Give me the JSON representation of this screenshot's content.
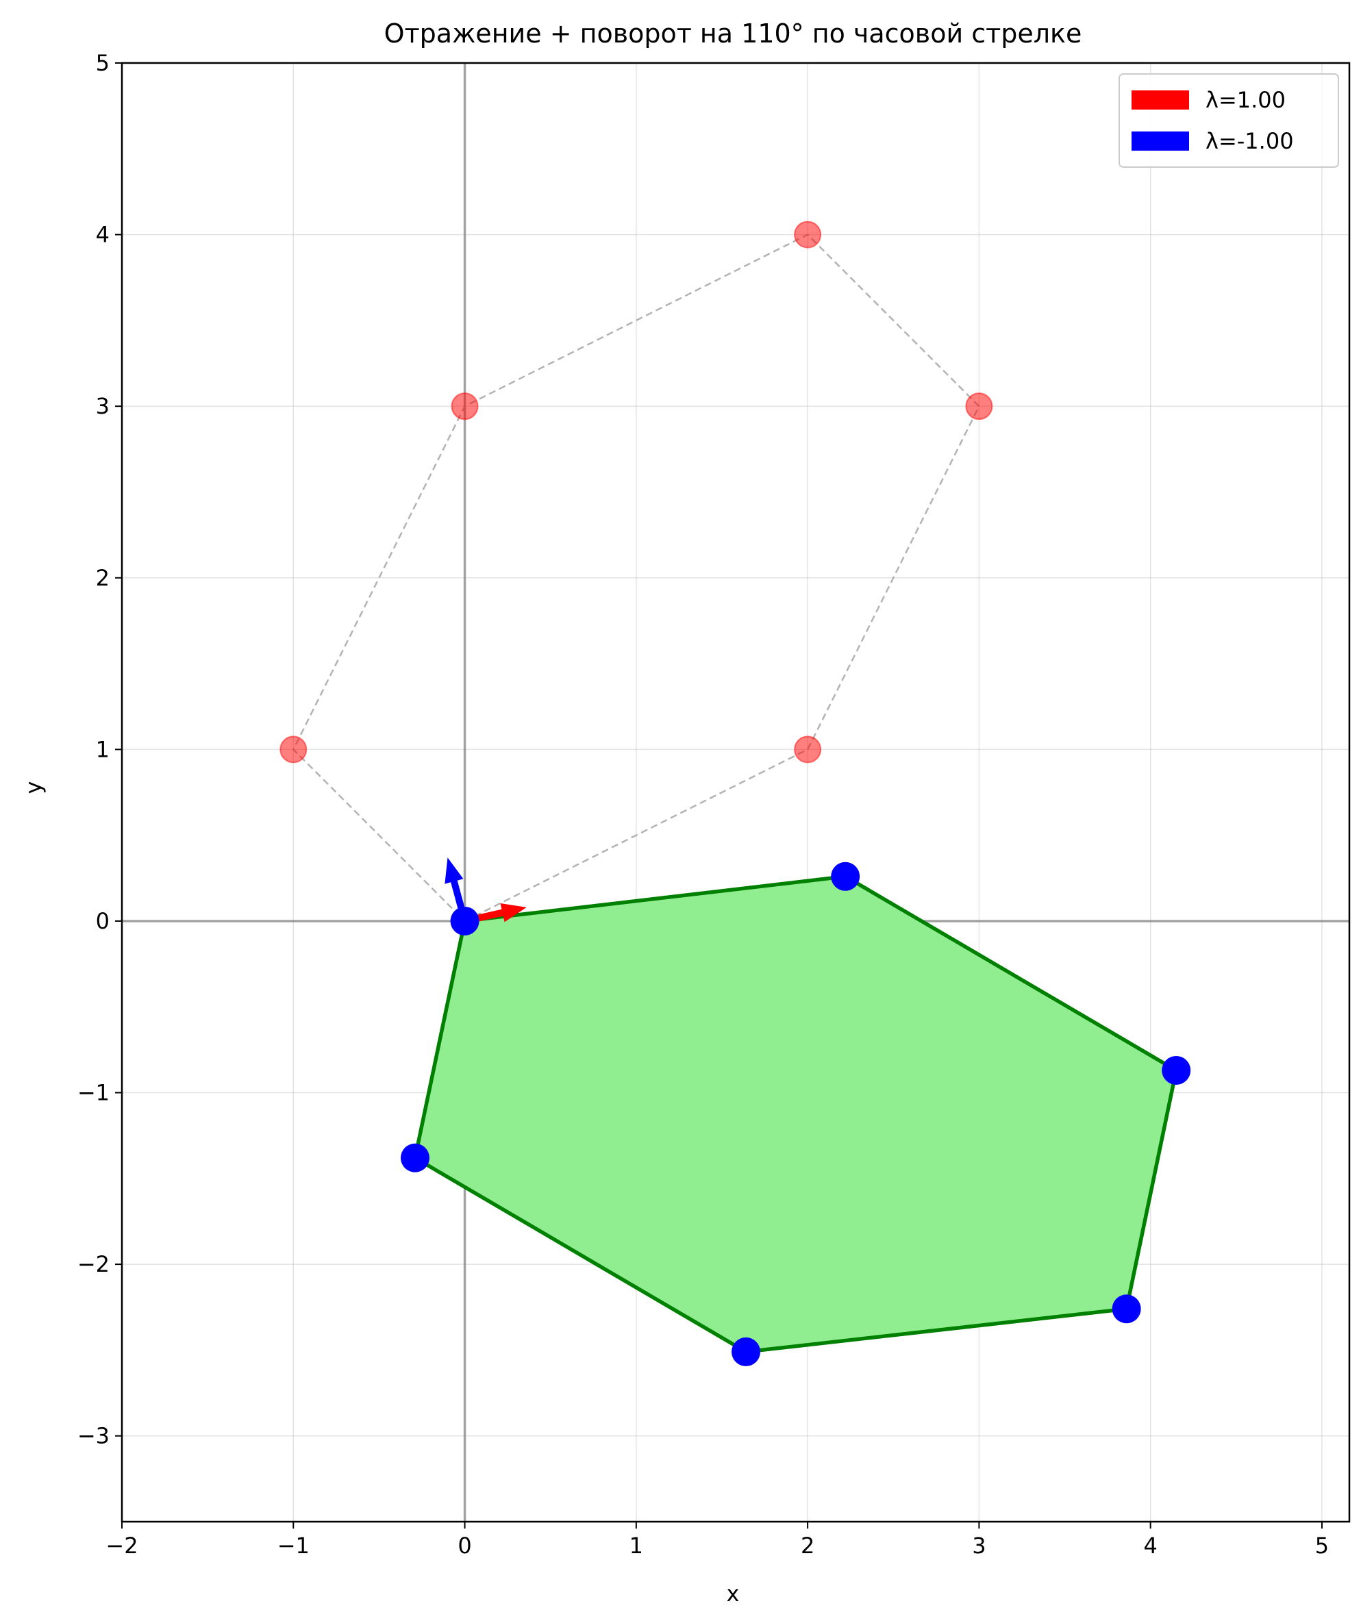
{
  "chart_data": {
    "type": "scatter",
    "title": "Отражение + поворот на 110° по часовой стрелке",
    "xlabel": "x",
    "ylabel": "y",
    "xlim": [
      -2,
      5.16
    ],
    "ylim": [
      -3.5,
      5
    ],
    "x_ticks": [
      -2,
      -1,
      0,
      1,
      2,
      3,
      4,
      5
    ],
    "y_ticks": [
      -3,
      -2,
      -1,
      0,
      1,
      2,
      3,
      4,
      5
    ],
    "x_tick_labels": [
      "−2",
      "−1",
      "0",
      "1",
      "2",
      "3",
      "4",
      "5"
    ],
    "y_tick_labels": [
      "−3",
      "−2",
      "−1",
      "0",
      "1",
      "2",
      "3",
      "4",
      "5"
    ],
    "grid": true,
    "legend_position": "top-right",
    "original_polygon": {
      "style": "dashed outline with semi-transparent markers",
      "color": "#ff0000",
      "points": [
        [
          0,
          0
        ],
        [
          2,
          1
        ],
        [
          3,
          3
        ],
        [
          2,
          4
        ],
        [
          0,
          3
        ],
        [
          -1,
          1
        ]
      ]
    },
    "transformed_polygon": {
      "style": "filled polygon with solid markers",
      "fill_color": "#90ee90",
      "edge_color": "#008000",
      "marker_color": "#0000ff",
      "points": [
        [
          0,
          0
        ],
        [
          2.22,
          0.26
        ],
        [
          4.15,
          -0.87
        ],
        [
          3.86,
          -2.26
        ],
        [
          1.64,
          -2.51
        ],
        [
          -0.29,
          -1.38
        ]
      ]
    },
    "eigenvectors": [
      {
        "name": "λ=1.00",
        "color": "#ff0000",
        "vector": [
          0.36,
          0.08
        ]
      },
      {
        "name": "λ=-1.00",
        "color": "#0000ff",
        "vector": [
          -0.1,
          0.37
        ]
      }
    ]
  }
}
